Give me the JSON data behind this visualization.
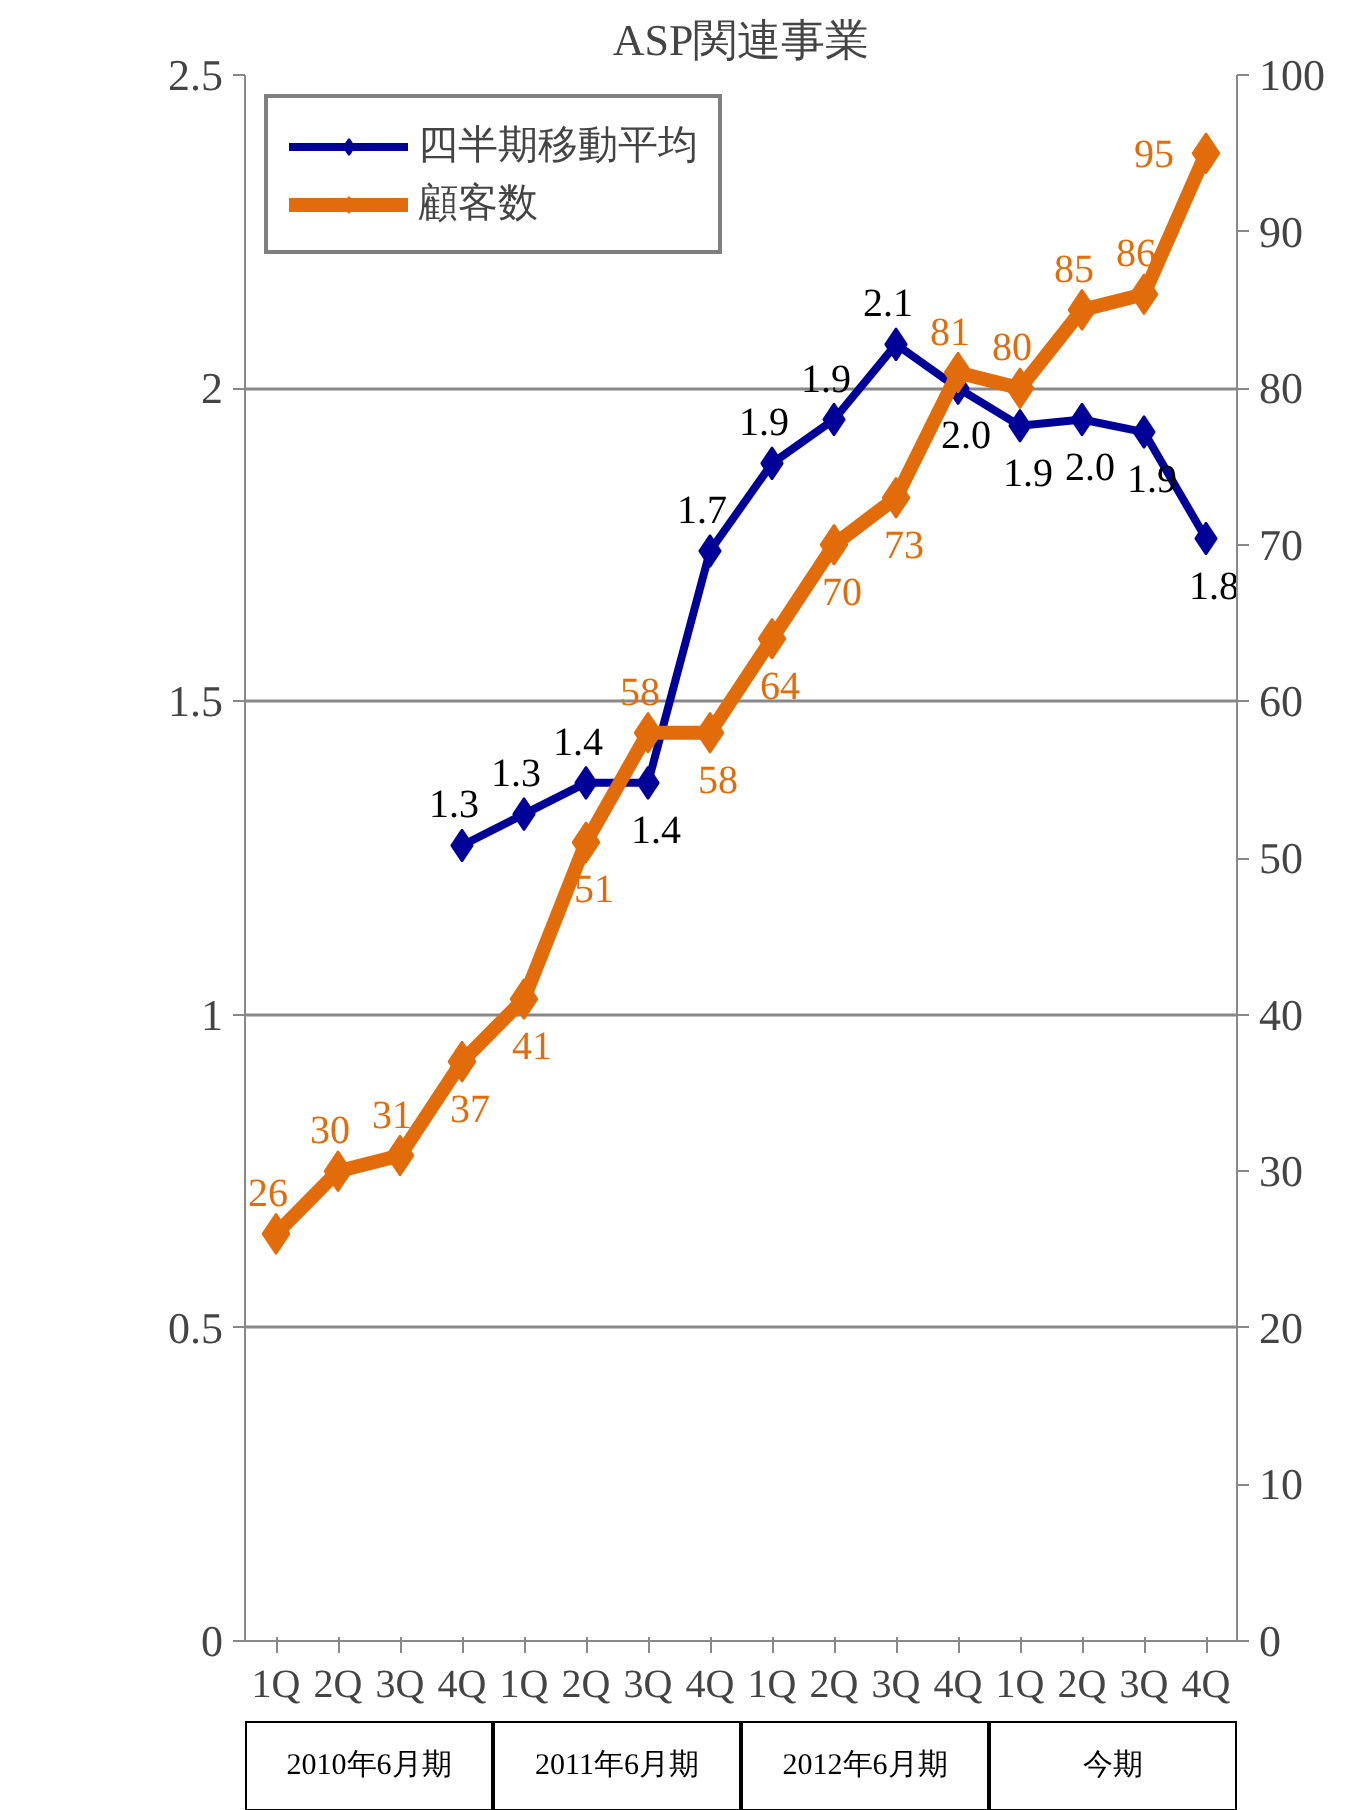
{
  "chart_data": {
    "type": "line",
    "title": "ASP関連事業",
    "categories": [
      "1Q",
      "2Q",
      "3Q",
      "4Q",
      "1Q",
      "2Q",
      "3Q",
      "4Q",
      "1Q",
      "2Q",
      "3Q",
      "4Q",
      "1Q",
      "2Q",
      "3Q",
      "4Q"
    ],
    "series": [
      {
        "name": "四半期移動平均",
        "color": "#000099",
        "values": [
          null,
          null,
          null,
          1.27,
          1.32,
          1.37,
          1.37,
          1.74,
          1.88,
          1.95,
          2.07,
          2.0,
          1.94,
          1.95,
          1.93,
          1.76
        ],
        "value_labels": [
          null,
          null,
          null,
          "1.3",
          "1.3",
          "1.4",
          "1.4",
          "1.7",
          "1.9",
          "1.9",
          "2.1",
          "2.0",
          "1.9",
          "2.0",
          "1.9",
          "1.8"
        ]
      },
      {
        "name": "顧客数",
        "color": "#e36c0a",
        "axis": "y2",
        "values": [
          26,
          30,
          31,
          37,
          41,
          51,
          58,
          58,
          64,
          70,
          73,
          81,
          80,
          85,
          86,
          95
        ],
        "value_labels": [
          "26",
          "30",
          "31",
          "37",
          "41",
          "51",
          "58",
          "58",
          "64",
          "70",
          "73",
          "81",
          "80",
          "85",
          "86",
          "95"
        ]
      }
    ],
    "ylim": [
      0,
      2.5
    ],
    "yticks": [
      0,
      {
        "value": 0.5,
        "label": "0.5"
      },
      1,
      {
        "value": 1.5,
        "label": "1.5"
      },
      2,
      {
        "value": 2.5,
        "label": "2.5"
      }
    ],
    "y2lim": [
      0,
      100
    ],
    "y2ticks": [
      0,
      10,
      20,
      30,
      40,
      50,
      60,
      70,
      80,
      90,
      100
    ],
    "grid": "y",
    "legend": "top left",
    "marker": "diamond",
    "line_style": "solid",
    "annotations": [
      "2010年6月期",
      "2011年6月期",
      "2012年6月期",
      "今期"
    ]
  }
}
